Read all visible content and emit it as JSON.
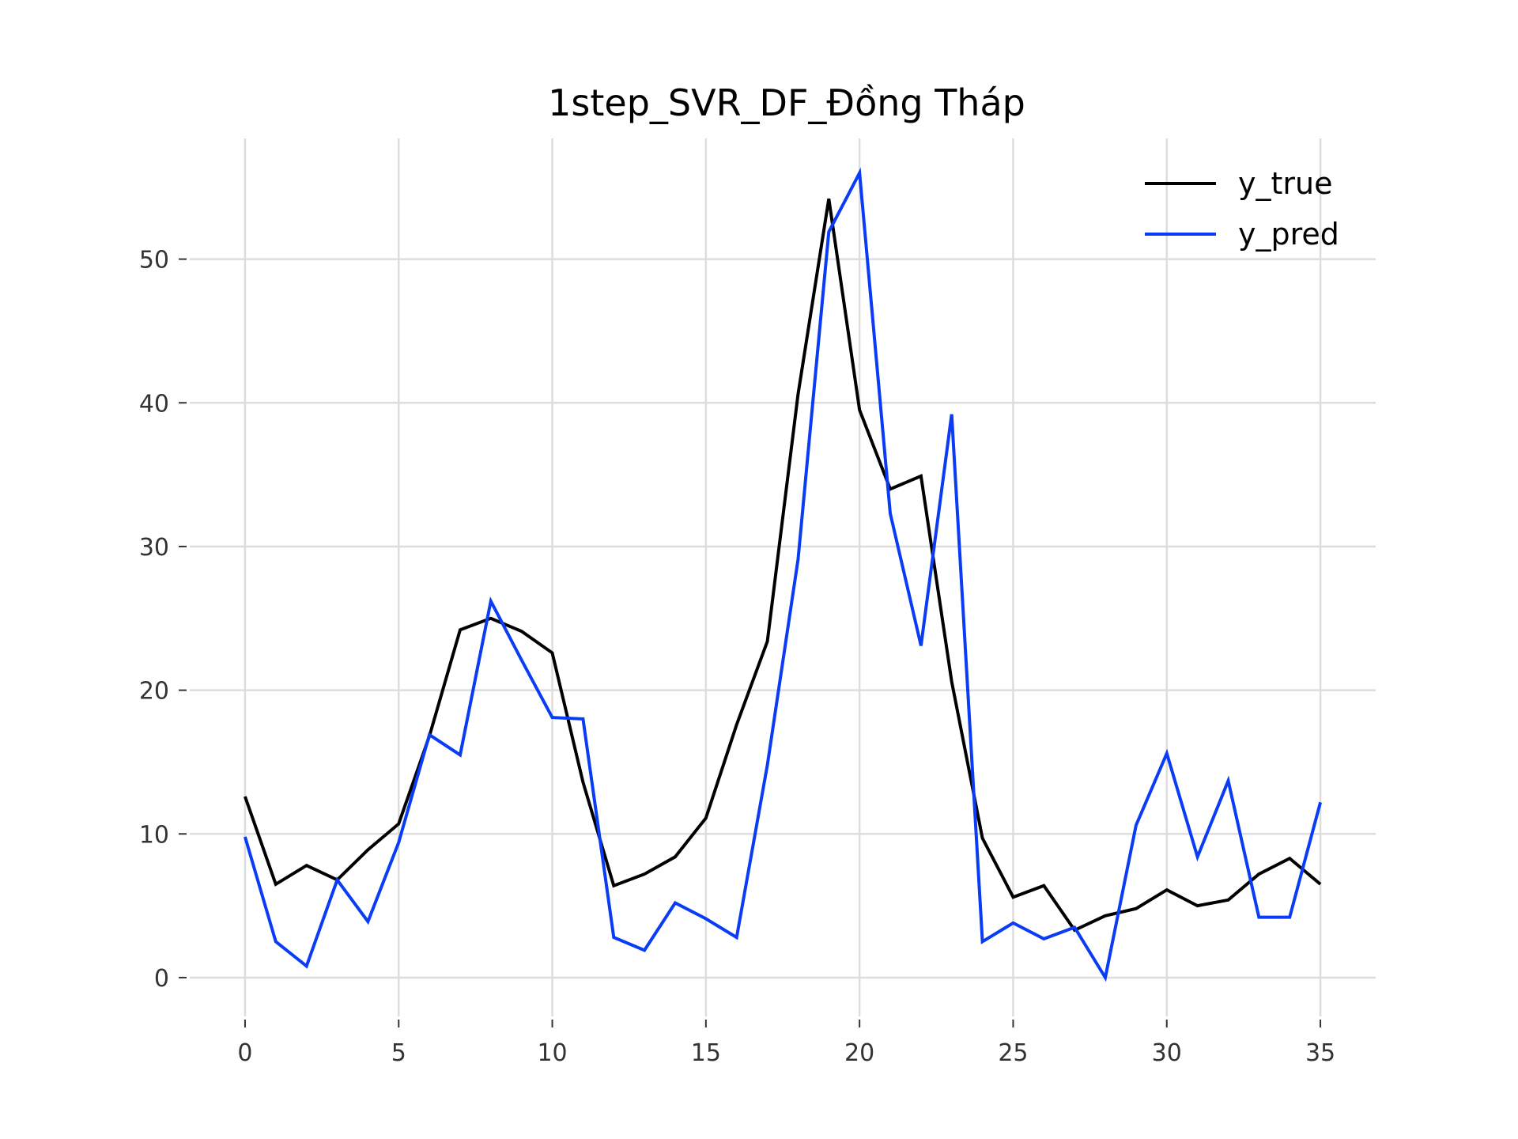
{
  "chart_data": {
    "type": "line",
    "title": "1step_SVR_DF_Đồng Tháp",
    "xlabel": "",
    "ylabel": "",
    "x": [
      0,
      1,
      2,
      3,
      4,
      5,
      6,
      7,
      8,
      9,
      10,
      11,
      12,
      13,
      14,
      15,
      16,
      17,
      18,
      19,
      20,
      21,
      22,
      23,
      24,
      25,
      26,
      27,
      28,
      29,
      30,
      31,
      32,
      33,
      34,
      35
    ],
    "xlim": [
      -1.8,
      36.8
    ],
    "ylim": [
      -2.7,
      58.4
    ],
    "xticks": [
      0,
      5,
      10,
      15,
      20,
      25,
      30,
      35
    ],
    "yticks": [
      0,
      10,
      20,
      30,
      40,
      50
    ],
    "grid": true,
    "legend_position": "top-right",
    "series": [
      {
        "name": "y_true",
        "color": "#000000",
        "values": [
          12.6,
          6.5,
          7.8,
          6.8,
          8.9,
          10.7,
          16.8,
          24.2,
          25.0,
          24.1,
          22.6,
          13.6,
          6.4,
          7.2,
          8.4,
          11.1,
          17.6,
          23.4,
          40.6,
          54.2,
          39.5,
          34.0,
          34.9,
          20.6,
          9.7,
          5.6,
          6.4,
          3.3,
          4.3,
          4.8,
          6.1,
          5.0,
          5.4,
          7.2,
          8.3,
          6.5
        ]
      },
      {
        "name": "y_pred",
        "color": "#0a3cf5",
        "values": [
          9.8,
          2.5,
          0.8,
          6.8,
          3.9,
          9.4,
          16.9,
          15.5,
          26.2,
          22.1,
          18.1,
          18.0,
          2.8,
          1.9,
          5.2,
          4.1,
          2.8,
          14.8,
          29.1,
          51.9,
          56.0,
          32.3,
          23.1,
          39.2,
          2.5,
          3.8,
          2.7,
          3.5,
          0.0,
          10.6,
          15.6,
          8.4,
          13.7,
          4.2,
          4.2,
          12.2
        ]
      }
    ]
  }
}
